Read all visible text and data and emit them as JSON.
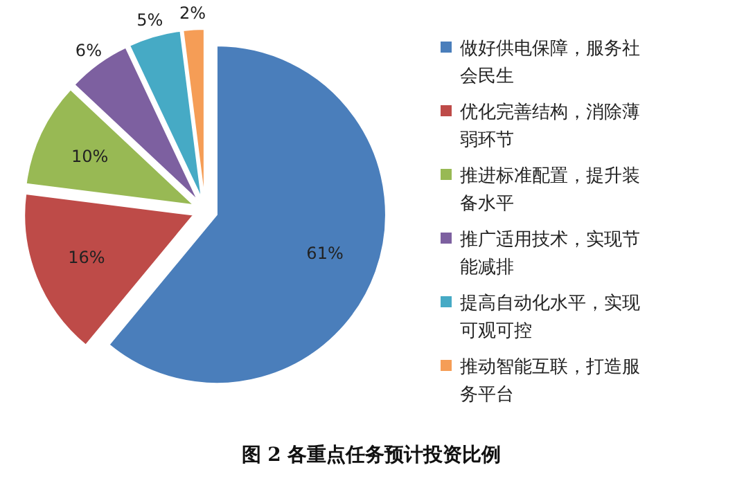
{
  "chart_data": {
    "type": "pie",
    "title": "图 2   各重点任务预计投资比例",
    "categories": [
      "做好供电保障，服务社会民生",
      "优化完善结构，消除薄弱环节",
      "推进标准配置，提升装备水平",
      "推广适用技术，实现节能减排",
      "提高自动化水平，实现可观可控",
      "推动智能互联，打造服务平台"
    ],
    "values": [
      61,
      16,
      10,
      6,
      5,
      2
    ],
    "value_labels": [
      "61%",
      "16%",
      "10%",
      "6%",
      "5%",
      "2%"
    ],
    "colors": [
      "#4a7ebb",
      "#be4b48",
      "#98b954",
      "#7d60a0",
      "#46aac5",
      "#f59d56"
    ],
    "legend": "right"
  }
}
